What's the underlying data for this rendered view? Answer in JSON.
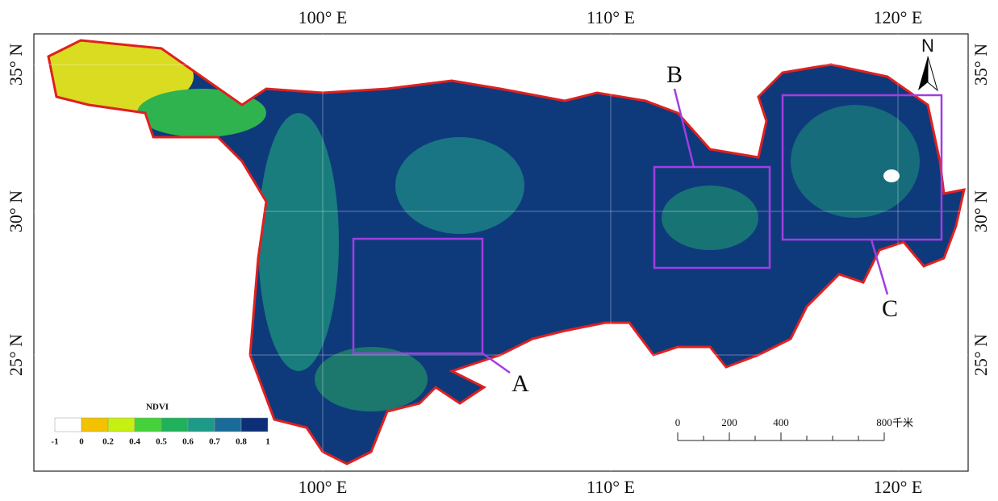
{
  "map": {
    "top_labels": [
      "100° E",
      "110° E",
      "120° E"
    ],
    "bottom_labels": [
      "100° E",
      "110° E",
      "120° E"
    ],
    "left_labels": [
      "35° N",
      "30° N",
      "25° N"
    ],
    "right_labels": [
      "35° N",
      "30° N",
      "25° N"
    ],
    "north": "N",
    "legend": {
      "title": "NDVI",
      "breaks": [
        "-1",
        "0",
        "0.2",
        "0.4",
        "0.5",
        "0.6",
        "0.7",
        "0.8",
        "1"
      ],
      "colors": [
        "#ffffff",
        "#f2c200",
        "#c6ef12",
        "#45d13a",
        "#20b25a",
        "#1d9a88",
        "#1a6b98",
        "#0d2f78"
      ]
    },
    "scale_bar": {
      "labels": [
        "0",
        "200",
        "400",
        "800"
      ],
      "unit": "千米"
    },
    "regions": [
      {
        "label": "A"
      },
      {
        "label": "B"
      },
      {
        "label": "C"
      }
    ]
  }
}
